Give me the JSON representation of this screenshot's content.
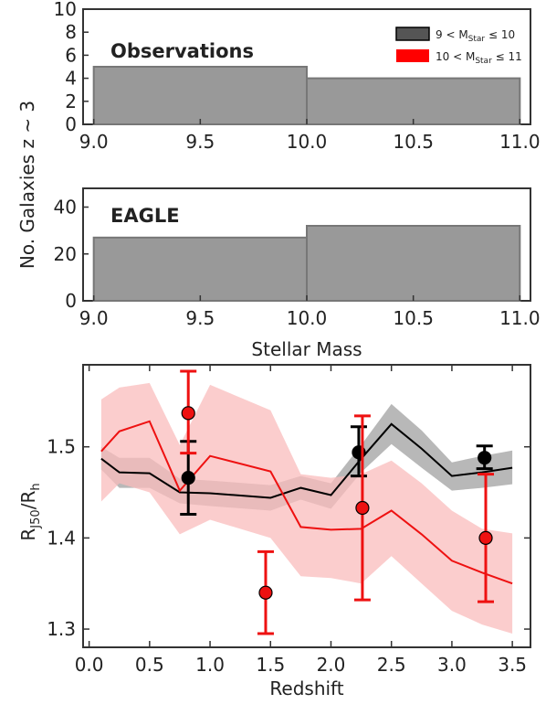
{
  "figure": {
    "shared_ylabel": "No. Galaxies  z ~ 3",
    "legend": [
      {
        "label_main": "9 < M",
        "label_sub": "Star",
        "label_end": " ≤ 10",
        "color": "#555555"
      },
      {
        "label_main": "10 < M",
        "label_sub": "Star",
        "label_end": " ≤ 11",
        "color": "#ff0000"
      }
    ]
  },
  "chart_data": [
    {
      "type": "bar",
      "title": "Observations",
      "bins": [
        [
          9.0,
          10.0
        ],
        [
          10.0,
          11.0
        ]
      ],
      "values": [
        5,
        4
      ],
      "xlim": [
        8.95,
        11.05
      ],
      "ylim": [
        0,
        10
      ],
      "xticks": [
        "9.0",
        "9.5",
        "10.0",
        "10.5",
        "11.0"
      ],
      "yticks": [
        "0",
        "2",
        "4",
        "6",
        "8",
        "10"
      ],
      "color": "#999999"
    },
    {
      "type": "bar",
      "title": "EAGLE",
      "bins": [
        [
          9.0,
          10.0
        ],
        [
          10.0,
          11.0
        ]
      ],
      "values": [
        27,
        32
      ],
      "xlim": [
        8.95,
        11.05
      ],
      "ylim": [
        0,
        48
      ],
      "xlabel": "Stellar Mass",
      "xticks": [
        "9.0",
        "9.5",
        "10.0",
        "10.5",
        "11.0"
      ],
      "yticks": [
        "0",
        "20",
        "40"
      ],
      "color": "#999999"
    },
    {
      "type": "line",
      "xlabel": "Redshift",
      "ylabel_main": "R",
      "ylabel_sub1": "J50",
      "ylabel_mid": "/R",
      "ylabel_sub2": "h",
      "xlim": [
        -0.05,
        3.65
      ],
      "ylim": [
        1.28,
        1.59
      ],
      "xticks": [
        "0.0",
        "0.5",
        "1.0",
        "1.5",
        "2.0",
        "2.5",
        "3.0",
        "3.5"
      ],
      "yticks": [
        "1.3",
        "1.4",
        "1.5"
      ],
      "series": [
        {
          "color": "#000000",
          "band_color": "#b8b8b8",
          "x": [
            0.1,
            0.25,
            0.5,
            0.75,
            1.0,
            1.5,
            1.75,
            2.0,
            2.25,
            2.5,
            2.75,
            3.0,
            3.25,
            3.5
          ],
          "y": [
            1.487,
            1.472,
            1.471,
            1.45,
            1.449,
            1.444,
            1.455,
            1.447,
            1.487,
            1.525,
            1.498,
            1.468,
            1.472,
            1.477
          ],
          "band_lo": [
            1.475,
            1.455,
            1.455,
            1.438,
            1.435,
            1.43,
            1.442,
            1.432,
            1.472,
            1.503,
            1.477,
            1.452,
            1.455,
            1.459
          ],
          "band_hi": [
            1.5,
            1.488,
            1.488,
            1.465,
            1.463,
            1.458,
            1.468,
            1.46,
            1.502,
            1.547,
            1.518,
            1.483,
            1.49,
            1.496
          ],
          "points": [
            {
              "x": 0.82,
              "y": 1.466,
              "err_lo": 0.04,
              "err_hi": 0.04
            },
            {
              "x": 2.23,
              "y": 1.494,
              "err_lo": 0.026,
              "err_hi": 0.028
            },
            {
              "x": 3.27,
              "y": 1.488,
              "err_lo": 0.012,
              "err_hi": 0.013
            }
          ]
        },
        {
          "color": "#ee1111",
          "band_color": "#f9bcbc",
          "x": [
            0.1,
            0.25,
            0.5,
            0.75,
            1.0,
            1.5,
            1.75,
            2.0,
            2.25,
            2.5,
            2.75,
            3.0,
            3.25,
            3.5
          ],
          "y": [
            1.495,
            1.517,
            1.528,
            1.452,
            1.49,
            1.473,
            1.412,
            1.409,
            1.41,
            1.43,
            1.404,
            1.375,
            1.362,
            1.35
          ],
          "band_lo": [
            1.44,
            1.46,
            1.45,
            1.404,
            1.42,
            1.4,
            1.358,
            1.356,
            1.35,
            1.38,
            1.35,
            1.32,
            1.305,
            1.295
          ],
          "band_hi": [
            1.552,
            1.565,
            1.57,
            1.502,
            1.568,
            1.54,
            1.47,
            1.466,
            1.47,
            1.485,
            1.46,
            1.43,
            1.41,
            1.405
          ],
          "points": [
            {
              "x": 0.82,
              "y": 1.537,
              "err_lo": 0.044,
              "err_hi": 0.046
            },
            {
              "x": 1.46,
              "y": 1.34,
              "err_lo": 0.045,
              "err_hi": 0.045
            },
            {
              "x": 2.26,
              "y": 1.433,
              "err_lo": 0.101,
              "err_hi": 0.101
            },
            {
              "x": 3.28,
              "y": 1.4,
              "err_lo": 0.07,
              "err_hi": 0.07
            }
          ]
        }
      ]
    }
  ]
}
